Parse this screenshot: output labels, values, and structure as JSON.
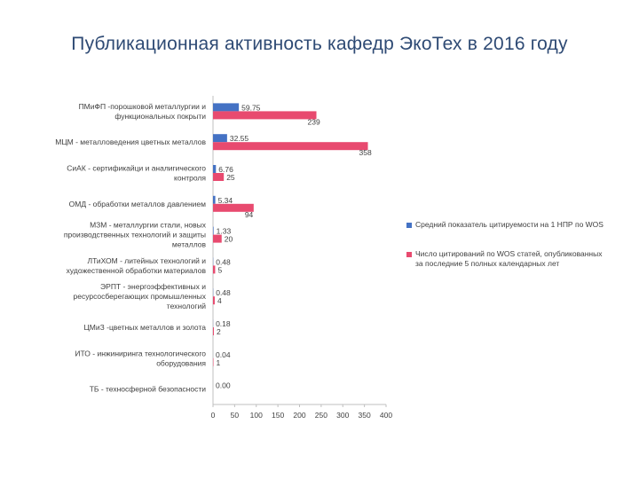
{
  "title": "Публикационная активность кафедр ЭкоТех в 2016 году",
  "colors": {
    "series1": "#4472c4",
    "series2": "#e84a6f",
    "axis": "#bfbfbf"
  },
  "chart_data": {
    "type": "bar",
    "orientation": "horizontal",
    "categories": [
      [
        "ПМиФП  -порошковой металлургии и",
        "функциональных покрыти"
      ],
      [
        "МЦМ - металловедения цветных металлов"
      ],
      [
        "СиАК - сертификайци и аналигического",
        "контроля"
      ],
      [
        "ОМД - обработки металлов давлением"
      ],
      [
        "МЗМ  - металлургии стали, новых",
        "производственных технологий и защиты",
        "металлов"
      ],
      [
        "ЛТиХОМ - литейных технологий и",
        "художественной обработки материалов"
      ],
      [
        "ЭРПТ - энергоэффективных и",
        "ресурсосберегающих промышленных",
        "технологий"
      ],
      [
        "ЦМиЗ  -цветных металлов и золота"
      ],
      [
        "ИТО -  инжиниринга технологического",
        "оборудования"
      ],
      [
        "ТБ - техносферной безопасности"
      ]
    ],
    "series": [
      {
        "name": "Средний показатель цитируемости на 1 НПР по WOS",
        "values": [
          59.75,
          32.55,
          6.76,
          5.34,
          1.33,
          0.48,
          0.48,
          0.18,
          0.04,
          0.0
        ],
        "labels": [
          "59.75",
          "32.55",
          "6.76",
          "5.34",
          "1.33",
          "0.48",
          "0.48",
          "0.18",
          "0.04",
          "0.00"
        ]
      },
      {
        "name": "Число цитирований по WOS статей, опубликованных за последние 5 полных календарных лет",
        "values": [
          239,
          358,
          25,
          94,
          20,
          5,
          4,
          2,
          1,
          0
        ],
        "labels": [
          "239",
          "358",
          "25",
          "94",
          "20",
          "5",
          "4",
          "2",
          "1",
          ""
        ]
      }
    ],
    "xlim": [
      0,
      400
    ],
    "xticks": [
      "0",
      "50",
      "100",
      "150",
      "200",
      "250",
      "300",
      "350",
      "400"
    ],
    "grid": false,
    "legend_position": "right"
  }
}
